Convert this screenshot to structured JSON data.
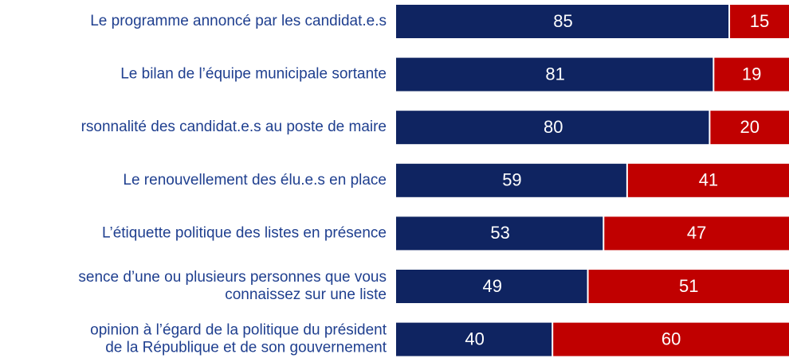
{
  "chart_data": {
    "type": "stacked-barh",
    "categories": [
      [
        "Le programme annoncé par les candidat.e.s"
      ],
      [
        "Le bilan de l’équipe municipale sortante"
      ],
      [
        "rsonnalité des candidat.e.s au poste de maire"
      ],
      [
        "Le renouvellement des élu.e.s en place"
      ],
      [
        "L’étiquette politique des listes en présence"
      ],
      [
        "sence d’une ou plusieurs personnes que vous",
        "connaissez sur une liste"
      ],
      [
        "opinion à l’égard de la politique du président",
        "de la République et de son gouvernement"
      ]
    ],
    "series": [
      {
        "color": "#0f2461",
        "values": [
          85,
          81,
          80,
          59,
          53,
          49,
          40
        ]
      },
      {
        "color": "#c00000",
        "values": [
          15,
          19,
          20,
          41,
          47,
          51,
          60
        ]
      }
    ],
    "xlim": [
      0,
      100
    ]
  }
}
